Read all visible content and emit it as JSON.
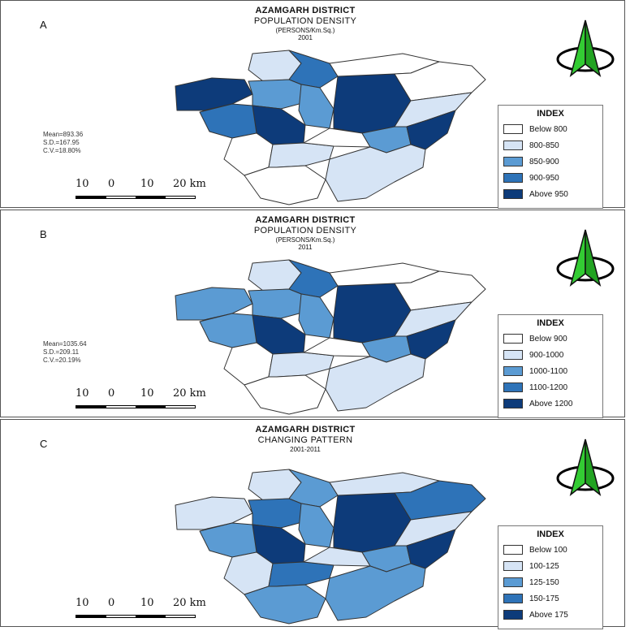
{
  "panels": [
    {
      "letter": "A",
      "title": "AZAMGARH DISTRICT",
      "subtitle": "POPULATION DENSITY",
      "units": "(PERSONS/Km.Sq.)",
      "year": "2001",
      "stats": {
        "mean": "Mean=893.36",
        "sd": "S.D.=167.95",
        "cv": "C.V.=18.80%"
      },
      "legend": {
        "title": "INDEX",
        "items": [
          "Below 800",
          "800-850",
          "850-900",
          "900-950",
          "Above 950"
        ]
      },
      "region_classes": [
        1,
        3,
        4,
        2,
        2,
        4,
        4,
        3,
        0,
        0,
        1,
        0,
        1,
        0,
        2,
        4,
        0,
        1
      ]
    },
    {
      "letter": "B",
      "title": "AZAMGARH DISTRICT",
      "subtitle": "POPULATION DENSITY",
      "units": "(PERSONS/Km.Sq.)",
      "year": "2011",
      "stats": {
        "mean": "Mean=1035.64",
        "sd": "S.D.=209.11",
        "cv": "C.V.=20.19%"
      },
      "legend": {
        "title": "INDEX",
        "items": [
          "Below 900",
          "900-1000",
          "1000-1100",
          "1100-1200",
          "Above 1200"
        ]
      },
      "region_classes": [
        1,
        3,
        2,
        2,
        2,
        4,
        4,
        2,
        0,
        0,
        1,
        0,
        1,
        0,
        2,
        4,
        0,
        1
      ]
    },
    {
      "letter": "C",
      "title": "AZAMGARH DISTRICT",
      "subtitle": "CHANGING PATTERN",
      "units": "2001-2011",
      "year": "",
      "stats": null,
      "legend": {
        "title": "INDEX",
        "items": [
          "Below 100",
          "100-125",
          "125-150",
          "150-175",
          "Above 175"
        ]
      },
      "region_classes": [
        1,
        2,
        1,
        3,
        2,
        4,
        4,
        2,
        1,
        3,
        1,
        1,
        3,
        1,
        2,
        4,
        2,
        2
      ]
    }
  ],
  "scale": {
    "labels": [
      "10",
      "0",
      "10",
      "20 km"
    ]
  },
  "colors": {
    "class_0": "#ffffff",
    "class_1": "#d6e4f5",
    "class_2": "#5b9bd3",
    "class_3": "#2e73b8",
    "class_4": "#0d3b7a",
    "north_arrow": "#33cc33"
  }
}
